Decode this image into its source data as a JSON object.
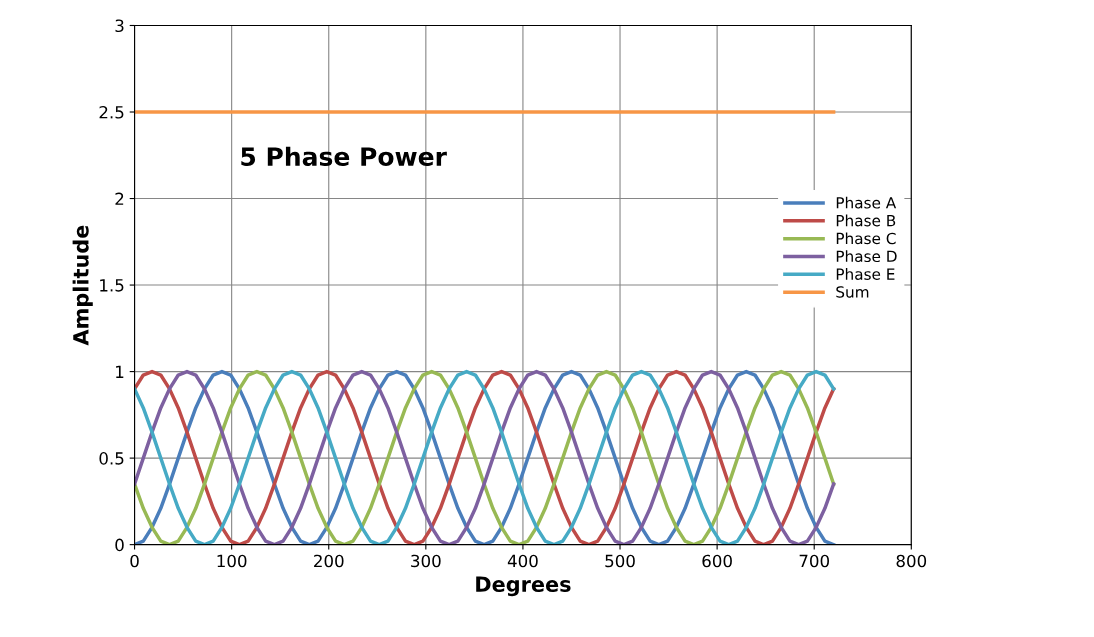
{
  "chart_data": {
    "type": "line",
    "title": "5 Phase Power",
    "xlabel": "Degrees",
    "ylabel": "Amplitude",
    "x": [
      0,
      9,
      18,
      27,
      36,
      45,
      54,
      63,
      72,
      81,
      90,
      99,
      108,
      117,
      126,
      135,
      144,
      153,
      162,
      171,
      180,
      189,
      198,
      207,
      216,
      225,
      234,
      243,
      252,
      261,
      270,
      279,
      288,
      297,
      306,
      315,
      324,
      333,
      342,
      351,
      360,
      369,
      378,
      387,
      396,
      405,
      414,
      423,
      432,
      441,
      450,
      459,
      468,
      477,
      486,
      495,
      504,
      513,
      522,
      531,
      540,
      549,
      558,
      567,
      576,
      585,
      594,
      603,
      612,
      621,
      630,
      639,
      648,
      657,
      666,
      675,
      684,
      693,
      702,
      711,
      720
    ],
    "series": [
      {
        "name": "Phase A",
        "color": "#4a7ebb",
        "values": [
          0,
          0.02,
          0.1,
          0.21,
          0.35,
          0.5,
          0.65,
          0.79,
          0.9,
          0.98,
          1,
          0.98,
          0.9,
          0.79,
          0.65,
          0.5,
          0.35,
          0.21,
          0.1,
          0.02,
          0,
          0.02,
          0.1,
          0.21,
          0.35,
          0.5,
          0.65,
          0.79,
          0.9,
          0.98,
          1,
          0.98,
          0.9,
          0.79,
          0.65,
          0.5,
          0.35,
          0.21,
          0.1,
          0.02,
          0,
          0.02,
          0.1,
          0.21,
          0.35,
          0.5,
          0.65,
          0.79,
          0.9,
          0.98,
          1,
          0.98,
          0.9,
          0.79,
          0.65,
          0.5,
          0.35,
          0.21,
          0.1,
          0.02,
          0,
          0.02,
          0.1,
          0.21,
          0.35,
          0.5,
          0.65,
          0.79,
          0.9,
          0.98,
          1,
          0.98,
          0.9,
          0.79,
          0.65,
          0.5,
          0.35,
          0.21,
          0.1,
          0.02,
          0
        ]
      },
      {
        "name": "Phase B",
        "color": "#be4b48",
        "values": [
          0.9,
          0.98,
          1,
          0.98,
          0.9,
          0.79,
          0.65,
          0.5,
          0.35,
          0.21,
          0.1,
          0.02,
          0,
          0.02,
          0.1,
          0.21,
          0.35,
          0.5,
          0.65,
          0.79,
          0.9,
          0.98,
          1,
          0.98,
          0.9,
          0.79,
          0.65,
          0.5,
          0.35,
          0.21,
          0.1,
          0.02,
          0,
          0.02,
          0.1,
          0.21,
          0.35,
          0.5,
          0.65,
          0.79,
          0.9,
          0.98,
          1,
          0.98,
          0.9,
          0.79,
          0.65,
          0.5,
          0.35,
          0.21,
          0.1,
          0.02,
          0,
          0.02,
          0.1,
          0.21,
          0.35,
          0.5,
          0.65,
          0.79,
          0.9,
          0.98,
          1,
          0.98,
          0.9,
          0.79,
          0.65,
          0.5,
          0.35,
          0.21,
          0.1,
          0.02,
          0,
          0.02,
          0.1,
          0.21,
          0.35,
          0.5,
          0.65,
          0.79,
          0.9
        ]
      },
      {
        "name": "Phase C",
        "color": "#98b954",
        "values": [
          0.35,
          0.21,
          0.1,
          0.02,
          0,
          0.02,
          0.1,
          0.21,
          0.35,
          0.5,
          0.65,
          0.79,
          0.9,
          0.98,
          1,
          0.98,
          0.9,
          0.79,
          0.65,
          0.5,
          0.35,
          0.21,
          0.1,
          0.02,
          0,
          0.02,
          0.1,
          0.21,
          0.35,
          0.5,
          0.65,
          0.79,
          0.9,
          0.98,
          1,
          0.98,
          0.9,
          0.79,
          0.65,
          0.5,
          0.35,
          0.21,
          0.1,
          0.02,
          0,
          0.02,
          0.1,
          0.21,
          0.35,
          0.5,
          0.65,
          0.79,
          0.9,
          0.98,
          1,
          0.98,
          0.9,
          0.79,
          0.65,
          0.5,
          0.35,
          0.21,
          0.1,
          0.02,
          0,
          0.02,
          0.1,
          0.21,
          0.35,
          0.5,
          0.65,
          0.79,
          0.9,
          0.98,
          1,
          0.98,
          0.9,
          0.79,
          0.65,
          0.5,
          0.35
        ]
      },
      {
        "name": "Phase D",
        "color": "#7d60a0",
        "values": [
          0.35,
          0.5,
          0.65,
          0.79,
          0.9,
          0.98,
          1,
          0.98,
          0.9,
          0.79,
          0.65,
          0.5,
          0.35,
          0.21,
          0.1,
          0.02,
          0,
          0.02,
          0.1,
          0.21,
          0.35,
          0.5,
          0.65,
          0.79,
          0.9,
          0.98,
          1,
          0.98,
          0.9,
          0.79,
          0.65,
          0.5,
          0.35,
          0.21,
          0.1,
          0.02,
          0,
          0.02,
          0.1,
          0.21,
          0.35,
          0.5,
          0.65,
          0.79,
          0.9,
          0.98,
          1,
          0.98,
          0.9,
          0.79,
          0.65,
          0.5,
          0.35,
          0.21,
          0.1,
          0.02,
          0,
          0.02,
          0.1,
          0.21,
          0.35,
          0.5,
          0.65,
          0.79,
          0.9,
          0.98,
          1,
          0.98,
          0.9,
          0.79,
          0.65,
          0.5,
          0.35,
          0.21,
          0.1,
          0.02,
          0,
          0.02,
          0.1,
          0.21,
          0.35
        ]
      },
      {
        "name": "Phase E",
        "color": "#46aac5",
        "values": [
          0.9,
          0.79,
          0.65,
          0.5,
          0.35,
          0.21,
          0.1,
          0.02,
          0,
          0.02,
          0.1,
          0.21,
          0.35,
          0.5,
          0.65,
          0.79,
          0.9,
          0.98,
          1,
          0.98,
          0.9,
          0.79,
          0.65,
          0.5,
          0.35,
          0.21,
          0.1,
          0.02,
          0,
          0.02,
          0.1,
          0.21,
          0.35,
          0.5,
          0.65,
          0.79,
          0.9,
          0.98,
          1,
          0.98,
          0.9,
          0.79,
          0.65,
          0.5,
          0.35,
          0.21,
          0.1,
          0.02,
          0,
          0.02,
          0.1,
          0.21,
          0.35,
          0.5,
          0.65,
          0.79,
          0.9,
          0.98,
          1,
          0.98,
          0.9,
          0.79,
          0.65,
          0.5,
          0.35,
          0.21,
          0.1,
          0.02,
          0,
          0.02,
          0.1,
          0.21,
          0.35,
          0.5,
          0.65,
          0.79,
          0.9,
          0.98,
          1,
          0.98,
          0.9
        ]
      },
      {
        "name": "Sum",
        "color": "#f79646",
        "x": [
          0,
          720
        ],
        "values": [
          2.5,
          2.5
        ]
      }
    ],
    "xlim": [
      0,
      800
    ],
    "xticks": [
      0,
      100,
      200,
      300,
      400,
      500,
      600,
      700,
      800
    ],
    "ylim": [
      0,
      3
    ],
    "yticks": [
      0,
      0.5,
      1,
      1.5,
      2,
      2.5,
      3
    ],
    "grid": true,
    "legend": "right",
    "marker": "none",
    "line_style": "solid"
  }
}
